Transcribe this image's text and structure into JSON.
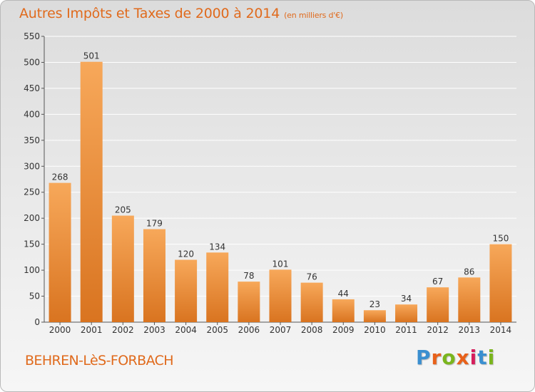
{
  "header": {
    "title": "Autres Impôts et Taxes de 2000 à 2014",
    "subtitle": "(en milliers d'€)"
  },
  "commune": "BEHREN-LèS-FORBACH",
  "logo": {
    "letters": [
      "P",
      "r",
      "o",
      "x",
      "i",
      "t",
      "i"
    ],
    "colors": [
      "#3a8fd0",
      "#e8611a",
      "#7ab51d",
      "#e8611a",
      "#d61e5c",
      "#3a8fd0",
      "#7ab51d"
    ]
  },
  "colors": {
    "bar_top": "#f7a85a",
    "bar_bottom": "#d97420",
    "grid": "#ffffff",
    "text": "#333333",
    "accent": "#e06a1c"
  },
  "chart_data": {
    "type": "bar",
    "categories": [
      "2000",
      "2001",
      "2002",
      "2003",
      "2004",
      "2005",
      "2006",
      "2007",
      "2008",
      "2009",
      "2010",
      "2011",
      "2012",
      "2013",
      "2014"
    ],
    "values": [
      268,
      501,
      205,
      179,
      120,
      134,
      78,
      101,
      76,
      44,
      23,
      34,
      67,
      86,
      150
    ],
    "ylim": [
      0,
      550
    ],
    "yticks": [
      0,
      50,
      100,
      150,
      200,
      250,
      300,
      350,
      400,
      450,
      500,
      550
    ],
    "grid": true
  }
}
